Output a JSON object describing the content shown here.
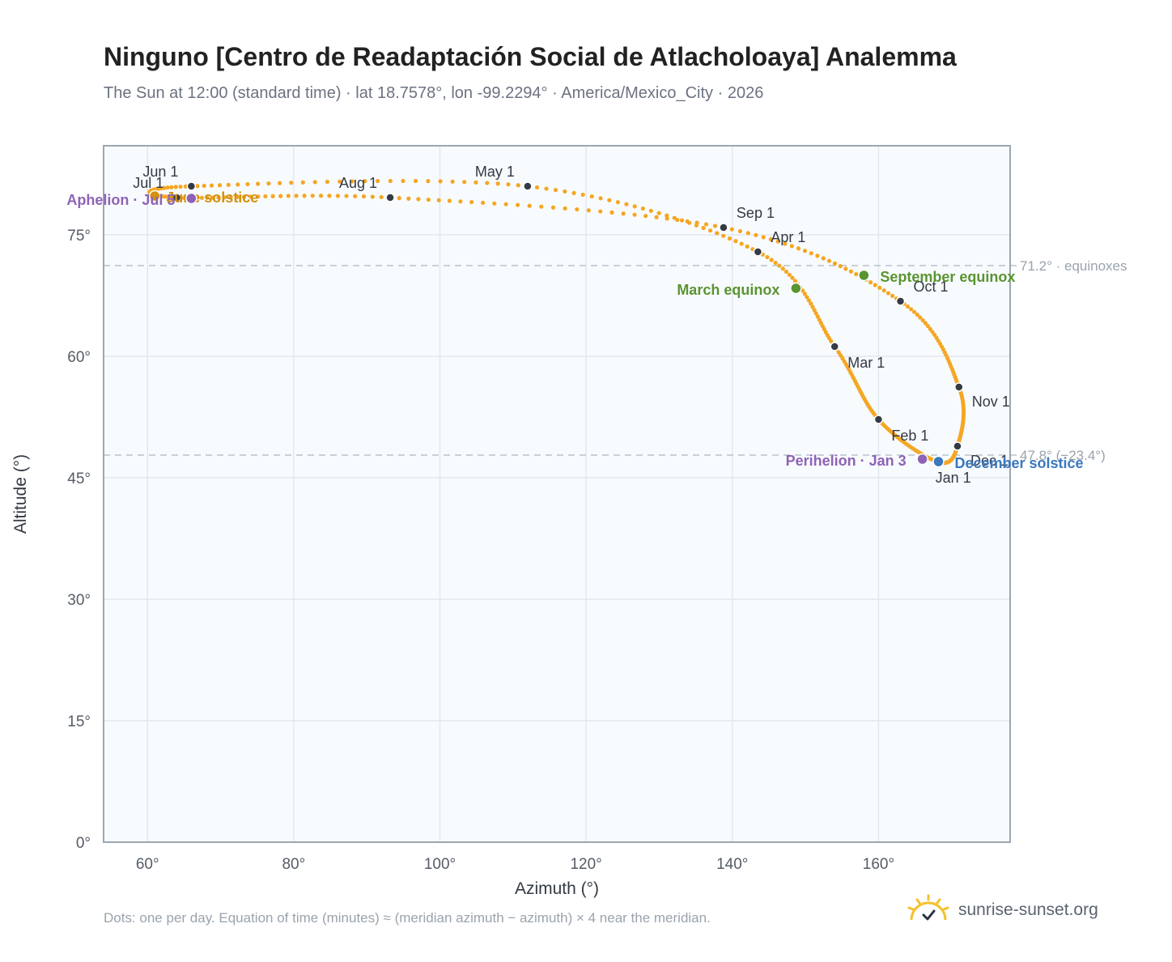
{
  "page": {
    "title": "Ninguno [Centro de Readaptación Social de Atlacholoaya] Analemma",
    "subtitle": "The Sun at 12:00 (standard time) · lat 18.7578°, lon -99.2294° · America/Mexico_City · 2026",
    "footnote": "Dots: one per day. Equation of time (minutes) ≈ (meridian azimuth − azimuth) × 4 near the meridian.",
    "brand": "sunrise-sunset.org"
  },
  "colors": {
    "curve": "#f5a623",
    "month_dot": "#353b45",
    "equinox": "#5a9431",
    "solstice_june": "#d4900f",
    "solstice_dec": "#3a78bf",
    "apsis": "#8e63b5",
    "grid": "#e3e8ee",
    "plot_bg": "#f8fbfe",
    "frame": "#9aa6b2",
    "ref_line": "#b8c2cc"
  },
  "chart_data": {
    "type": "scatter",
    "xlabel": "Azimuth (°)",
    "ylabel": "Altitude (°)",
    "xlim": [
      54,
      178
    ],
    "ylim": [
      0,
      86
    ],
    "x_ticks": [
      60,
      80,
      100,
      120,
      140,
      160
    ],
    "x_tick_labels": [
      "60°",
      "80°",
      "100°",
      "120°",
      "140°",
      "160°"
    ],
    "y_ticks": [
      0,
      15,
      30,
      45,
      60,
      75
    ],
    "y_tick_labels": [
      "0°",
      "15°",
      "30°",
      "45°",
      "60°",
      "75°"
    ],
    "grid": true,
    "reference_lines": [
      {
        "y": 71.2,
        "label": "71.2° · equinoxes"
      },
      {
        "y": 47.8,
        "label": "47.8° (−23.4°)"
      }
    ],
    "month_points": [
      {
        "label": "Jan 1",
        "az": 168.0,
        "alt": 47.0
      },
      {
        "label": "Feb 1",
        "az": 160.0,
        "alt": 52.2
      },
      {
        "label": "Mar 1",
        "az": 154.0,
        "alt": 61.2
      },
      {
        "label": "Apr 1",
        "az": 143.5,
        "alt": 72.9
      },
      {
        "label": "May 1",
        "az": 112.0,
        "alt": 81.0
      },
      {
        "label": "Jun 1",
        "az": 66.0,
        "alt": 81.0
      },
      {
        "label": "Jul 1",
        "az": 64.0,
        "alt": 79.6
      },
      {
        "label": "Aug 1",
        "az": 93.2,
        "alt": 79.6
      },
      {
        "label": "Sep 1",
        "az": 138.8,
        "alt": 75.9
      },
      {
        "label": "Oct 1",
        "az": 163.0,
        "alt": 66.8
      },
      {
        "label": "Nov 1",
        "az": 171.0,
        "alt": 56.2
      },
      {
        "label": "Dec 1",
        "az": 170.8,
        "alt": 48.9
      }
    ],
    "events": [
      {
        "label": "March equinox",
        "az": 148.7,
        "alt": 68.4,
        "kind": "equinox"
      },
      {
        "label": "June solstice",
        "az": 61.0,
        "alt": 79.8,
        "kind": "solstice_june"
      },
      {
        "label": "September equinox",
        "az": 158.0,
        "alt": 70.0,
        "kind": "equinox"
      },
      {
        "label": "December solstice",
        "az": 168.2,
        "alt": 47.0,
        "kind": "solstice_dec"
      },
      {
        "label": "Perihelion · Jan 3",
        "az": 166.0,
        "alt": 47.3,
        "kind": "apsis"
      },
      {
        "label": "Aphelion · Jul 5",
        "az": 66.0,
        "alt": 79.5,
        "kind": "apsis"
      }
    ]
  }
}
